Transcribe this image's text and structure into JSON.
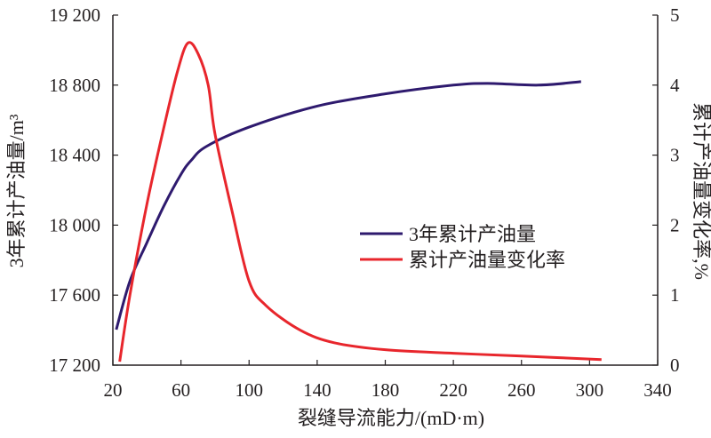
{
  "chart_data": {
    "type": "line",
    "xlabel": "裂缝导流能力/(mD·m)",
    "ylabel": "3年累计产油量/m³",
    "y2label": "累计产油量变化率,%",
    "xlim": [
      20,
      340
    ],
    "ylim": [
      17200,
      19200
    ],
    "y2lim": [
      0,
      5
    ],
    "xticks": [
      20,
      60,
      100,
      140,
      180,
      220,
      260,
      300,
      340
    ],
    "yticks": [
      17200,
      17600,
      18000,
      18400,
      18800,
      19200
    ],
    "ytick_labels": [
      "17 200",
      "17 600",
      "18 000",
      "18 400",
      "18 800",
      "19 200"
    ],
    "y2ticks": [
      0,
      1,
      2,
      3,
      4,
      5
    ],
    "legend_position": "center-right",
    "series": [
      {
        "name": "3年累计产油量",
        "axis": "left",
        "color": "#2e1a6e",
        "x": [
          22,
          30,
          40,
          50,
          60,
          66,
          75,
          100,
          140,
          180,
          220,
          240,
          270,
          295
        ],
        "y": [
          17403,
          17680,
          17900,
          18110,
          18290,
          18370,
          18450,
          18560,
          18680,
          18750,
          18800,
          18810,
          18800,
          18820
        ]
      },
      {
        "name": "累计产油量变化率",
        "axis": "right",
        "color": "#e8262c",
        "x": [
          24,
          30,
          40,
          50,
          58,
          64,
          70,
          76,
          80,
          90,
          100,
          110,
          130,
          150,
          180,
          220,
          260,
          307
        ],
        "y": [
          0.05,
          1.0,
          2.3,
          3.4,
          4.2,
          4.6,
          4.45,
          4.0,
          3.3,
          2.2,
          1.2,
          0.85,
          0.5,
          0.32,
          0.22,
          0.17,
          0.13,
          0.08
        ]
      }
    ]
  }
}
